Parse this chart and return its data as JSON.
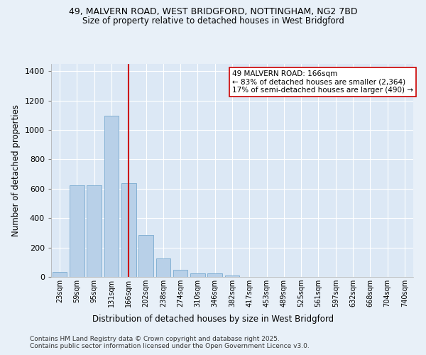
{
  "title_line1": "49, MALVERN ROAD, WEST BRIDGFORD, NOTTINGHAM, NG2 7BD",
  "title_line2": "Size of property relative to detached houses in West Bridgford",
  "xlabel": "Distribution of detached houses by size in West Bridgford",
  "ylabel": "Number of detached properties",
  "bins": [
    "23sqm",
    "59sqm",
    "95sqm",
    "131sqm",
    "166sqm",
    "202sqm",
    "238sqm",
    "274sqm",
    "310sqm",
    "346sqm",
    "382sqm",
    "417sqm",
    "453sqm",
    "489sqm",
    "525sqm",
    "561sqm",
    "597sqm",
    "632sqm",
    "668sqm",
    "704sqm",
    "740sqm"
  ],
  "values": [
    35,
    625,
    625,
    1095,
    640,
    285,
    125,
    50,
    25,
    25,
    8,
    0,
    0,
    0,
    0,
    0,
    0,
    0,
    0,
    0,
    0
  ],
  "bar_color": "#b8d0e8",
  "bar_edge_color": "#7aaacf",
  "vline_x": 4,
  "vline_color": "#cc0000",
  "annotation_text": "49 MALVERN ROAD: 166sqm\n← 83% of detached houses are smaller (2,364)\n17% of semi-detached houses are larger (490) →",
  "annotation_box_color": "#ffffff",
  "annotation_box_edge": "#cc0000",
  "ylim": [
    0,
    1450
  ],
  "yticks": [
    0,
    200,
    400,
    600,
    800,
    1000,
    1200,
    1400
  ],
  "bg_color": "#dce8f5",
  "fig_bg_color": "#e8f0f8",
  "footer_line1": "Contains HM Land Registry data © Crown copyright and database right 2025.",
  "footer_line2": "Contains public sector information licensed under the Open Government Licence v3.0."
}
